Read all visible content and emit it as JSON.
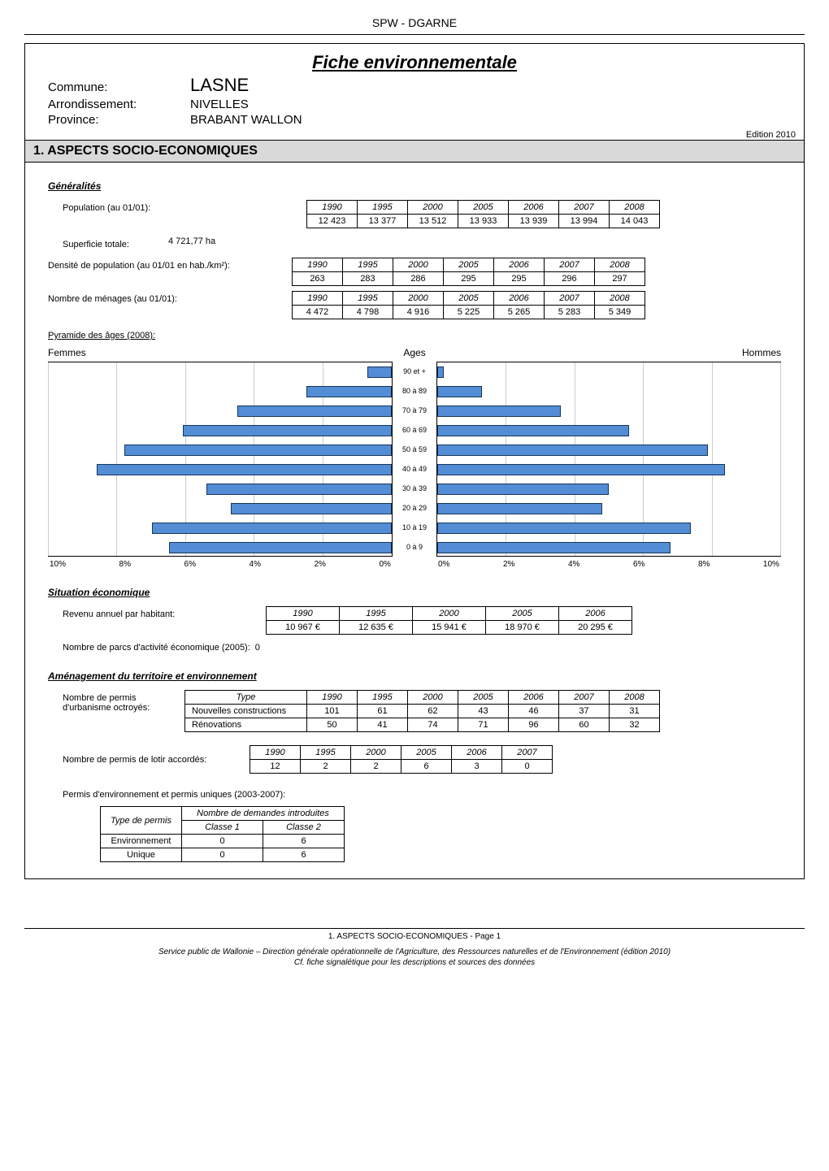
{
  "header": {
    "org": "SPW - DGARNE"
  },
  "fiche": {
    "title": "Fiche environnementale",
    "commune_label": "Commune:",
    "commune": "LASNE",
    "arr_label": "Arrondissement:",
    "arrondissement": "NIVELLES",
    "prov_label": "Province:",
    "province": "BRABANT WALLON",
    "edition": "Edition  2010"
  },
  "section1": {
    "title": "1. ASPECTS SOCIO-ECONOMIQUES",
    "generalites": {
      "heading": "Généralités",
      "population_label": "Population (au 01/01):",
      "population": {
        "years": [
          "1990",
          "1995",
          "2000",
          "2005",
          "2006",
          "2007",
          "2008"
        ],
        "values": [
          "12 423",
          "13 377",
          "13 512",
          "13 933",
          "13 939",
          "13 994",
          "14 043"
        ]
      },
      "superficie_label": "Superficie totale:",
      "superficie": "4 721,77 ha",
      "densite_label": "Densité de population (au 01/01 en hab./km²):",
      "densite": {
        "years": [
          "1990",
          "1995",
          "2000",
          "2005",
          "2006",
          "2007",
          "2008"
        ],
        "values": [
          "263",
          "283",
          "286",
          "295",
          "295",
          "296",
          "297"
        ]
      },
      "menages_label": "Nombre de ménages (au 01/01):",
      "menages": {
        "years": [
          "1990",
          "1995",
          "2000",
          "2005",
          "2006",
          "2007",
          "2008"
        ],
        "values": [
          "4 472",
          "4 798",
          "4 916",
          "5 225",
          "5 265",
          "5 283",
          "5 349"
        ]
      },
      "pyramide_label": "Pyramide des âges (2008):",
      "pyramide": {
        "femmes_label": "Femmes",
        "hommes_label": "Hommes",
        "ages_label": "Ages",
        "bands": [
          "90 et +",
          "80 à 89",
          "70 à 79",
          "60 à 69",
          "50 à 59",
          "40 à 49",
          "30 à 39",
          "20 à 29",
          "10 à 19",
          "0 à 9"
        ],
        "femmes_pct": [
          0.7,
          2.5,
          4.5,
          6.1,
          7.8,
          8.6,
          5.4,
          4.7,
          7.0,
          6.5
        ],
        "hommes_pct": [
          0.2,
          1.3,
          3.6,
          5.6,
          7.9,
          8.4,
          5.0,
          4.8,
          7.4,
          6.8
        ],
        "xticks_left": [
          "10%",
          "8%",
          "6%",
          "4%",
          "2%",
          "0%"
        ],
        "xticks_right": [
          "0%",
          "2%",
          "4%",
          "6%",
          "8%",
          "10%"
        ],
        "xmax": 10,
        "bar_color": "#538dd5",
        "bar_border": "#16365c",
        "grid_color": "#cccccc"
      }
    },
    "situation": {
      "heading": "Situation économique",
      "revenu_label": "Revenu annuel par habitant:",
      "revenu": {
        "years": [
          "1990",
          "1995",
          "2000",
          "2005",
          "2006"
        ],
        "values": [
          "10 967 €",
          "12 635 €",
          "15 941 €",
          "18 970 €",
          "20 295 €"
        ]
      },
      "parcs_label": "Nombre de parcs d'activité économique (2005):",
      "parcs_value": "0"
    },
    "amenagement": {
      "heading": "Aménagement du territoire et environnement",
      "permis_label_1": "Nombre de permis",
      "permis_label_2": "d'urbanisme octroyés:",
      "permis_tbl": {
        "headers": [
          "Type",
          "1990",
          "1995",
          "2000",
          "2005",
          "2006",
          "2007",
          "2008"
        ],
        "rows": [
          [
            "Nouvelles constructions",
            "101",
            "61",
            "62",
            "43",
            "46",
            "37",
            "31"
          ],
          [
            "Rénovations",
            "50",
            "41",
            "74",
            "71",
            "96",
            "60",
            "32"
          ]
        ]
      },
      "lotir_label": "Nombre de permis de lotir accordés:",
      "lotir": {
        "years": [
          "1990",
          "1995",
          "2000",
          "2005",
          "2006",
          "2007"
        ],
        "values": [
          "12",
          "2",
          "2",
          "6",
          "3",
          "0"
        ]
      },
      "env_label": "Permis d'environnement et permis uniques (2003-2007):",
      "env_tbl": {
        "h_type": "Type de permis",
        "h_demandes": "Nombre de demandes  introduites",
        "h_c1": "Classe 1",
        "h_c2": "Classe 2",
        "rows": [
          [
            "Environnement",
            "0",
            "6"
          ],
          [
            "Unique",
            "0",
            "6"
          ]
        ]
      }
    }
  },
  "footer": {
    "page": "1. ASPECTS SOCIO-ECONOMIQUES - Page 1",
    "l1": "Service public de Wallonie – Direction générale opérationnelle de l'Agriculture, des Ressources naturelles et de l'Environnement (édition 2010)",
    "l2": "Cf. fiche signalétique pour les descriptions et sources des données"
  }
}
